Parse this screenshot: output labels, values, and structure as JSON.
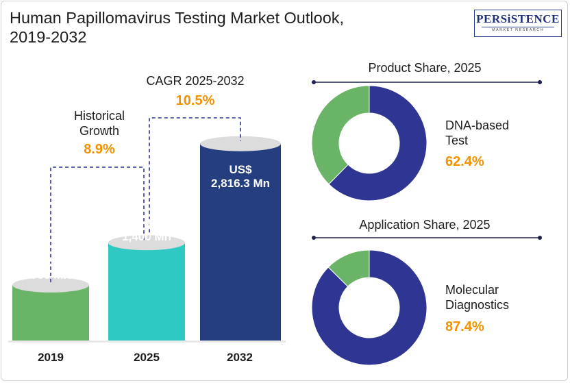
{
  "header": {
    "title_line1": "Human Papillomavirus Testing Market Outlook,",
    "title_line2": "2019-2032",
    "logo_main": "PERSiSTENCE",
    "logo_sub": "MARKET RESEARCH"
  },
  "colors": {
    "bar_2019": "#6ab468",
    "bar_2025": "#2ec9c2",
    "bar_2032": "#243e7f",
    "bar_top": "#dcdcdc",
    "accent_orange": "#f39200",
    "donut_primary": "#2e3592",
    "donut_secondary": "#6ab468",
    "line_dark": "#1f2250"
  },
  "chart_data": [
    {
      "type": "bar",
      "categories": [
        "2019",
        "2025",
        "2032"
      ],
      "values": [
        795,
        1400,
        2816.3
      ],
      "value_labels": [
        {
          "line1": "US$",
          "line2": "795 Mn"
        },
        {
          "line1": "US$",
          "line2": "1,400 Mn"
        },
        {
          "line1": "US$",
          "line2": "2,816.3 Mn"
        }
      ],
      "annotations": [
        {
          "label_line1": "Historical",
          "label_line2": "Growth",
          "value": "8.9%"
        },
        {
          "label_line1": "CAGR 2025-2032",
          "value": "10.5%"
        }
      ]
    },
    {
      "type": "pie",
      "title": "Product Share, 2025",
      "slices": [
        {
          "label_line1": "DNA-based",
          "label_line2": "Test",
          "value": 62.4,
          "value_label": "62.4%"
        },
        {
          "value": 37.6
        }
      ]
    },
    {
      "type": "pie",
      "title": "Application Share, 2025",
      "slices": [
        {
          "label_line1": "Molecular",
          "label_line2": "Diagnostics",
          "value": 87.4,
          "value_label": "87.4%"
        },
        {
          "value": 12.6
        }
      ]
    }
  ]
}
